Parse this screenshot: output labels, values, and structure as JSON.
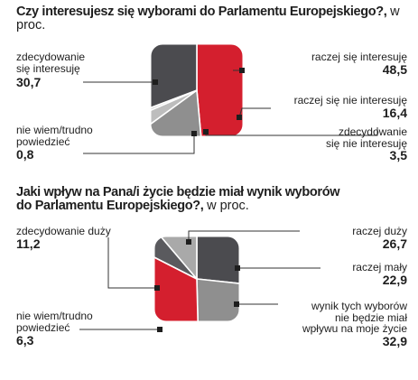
{
  "chart_data": [
    {
      "type": "pie",
      "title": "Czy interesujesz się wyborami do Parlamentu Europejskiego?,",
      "unit_note": "w proc.",
      "categories": [
        "raczej się interesuję",
        "raczej się nie interesuję",
        "zdecydowanie się nie interesuję",
        "nie wiem/trudno powiedzieć",
        "zdecydowanie się interesuję"
      ],
      "values": [
        48.5,
        16.4,
        3.5,
        0.8,
        30.7
      ],
      "value_labels": [
        "48,5",
        "16,4",
        "3,5",
        "0,8",
        "30,7"
      ],
      "colors": [
        "#d41f2e",
        "#8f8f8f",
        "#bdbdbd",
        "#dcdcdc",
        "#4b4b4f"
      ],
      "label_lines": [
        [
          "raczej się interesuję"
        ],
        [
          "raczej się nie interesuję"
        ],
        [
          "zdecydowanie",
          "się nie interesuję"
        ],
        [
          "nie wiem/trudno",
          "powiedzieć"
        ],
        [
          "zdecydowanie",
          "się interesuję"
        ]
      ]
    },
    {
      "type": "pie",
      "title_lines": [
        "Jaki wpływ na Pana/i życie będzie miał wynik wyborów",
        "do Parlamentu Europejskiego?,"
      ],
      "unit_note": "w proc.",
      "categories": [
        "raczej duży",
        "raczej mały",
        "wynik tych wyborów nie będzie miał wpływu na moje życie",
        "nie wiem/trudno powiedzieć",
        "zdecydowanie duży"
      ],
      "values": [
        26.7,
        22.9,
        32.9,
        6.3,
        11.2
      ],
      "value_labels": [
        "26,7",
        "22,9",
        "32,9",
        "6,3",
        "11,2"
      ],
      "colors": [
        "#4b4b4f",
        "#8f8f8f",
        "#d41f2e",
        "#5a5a5e",
        "#a9a9a9"
      ],
      "label_lines": [
        [
          "raczej duży"
        ],
        [
          "raczej mały"
        ],
        [
          "wynik tych wyborów",
          "nie będzie miał",
          "wpływu na moje życie"
        ],
        [
          "nie wiem/trudno",
          "powiedzieć"
        ],
        [
          "zdecydowanie duży"
        ]
      ]
    }
  ]
}
